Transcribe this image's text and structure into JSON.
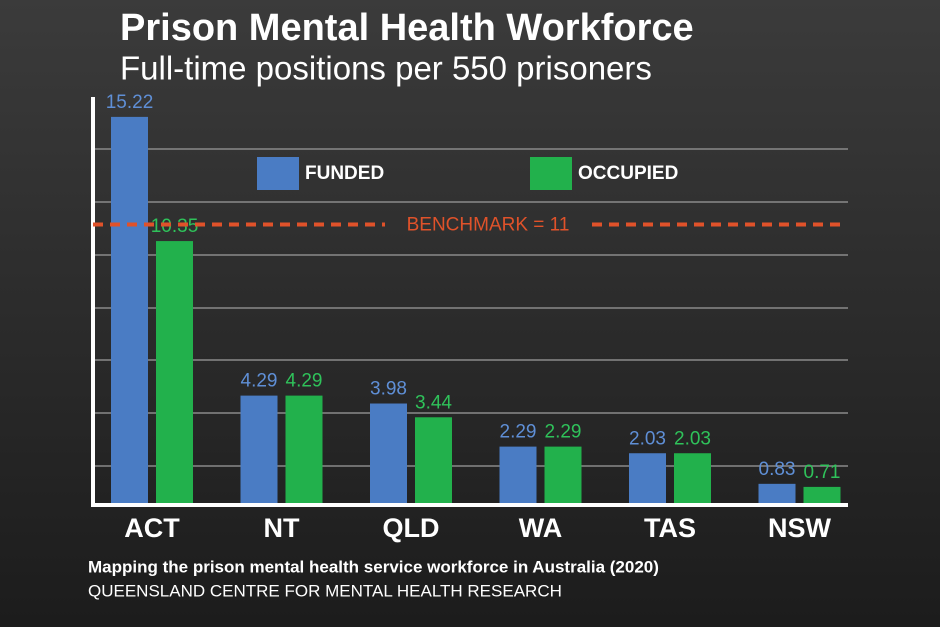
{
  "chart_data": {
    "type": "bar",
    "title": "Prison Mental Health Workforce",
    "subtitle": "Full-time positions per 550 prisoners",
    "categories": [
      "ACT",
      "NT",
      "QLD",
      "WA",
      "TAS",
      "NSW"
    ],
    "series": [
      {
        "name": "FUNDED",
        "color": "#4a7cc4",
        "values": [
          15.22,
          4.29,
          3.98,
          2.29,
          2.03,
          0.83
        ]
      },
      {
        "name": "OCCUPIED",
        "color": "#22b14c",
        "values": [
          10.35,
          4.29,
          3.44,
          2.29,
          2.03,
          0.71
        ]
      }
    ],
    "benchmark": {
      "value": 11,
      "label": "BENCHMARK = 11",
      "color": "#e0522a"
    },
    "ylim": [
      0,
      16
    ],
    "source_title": "Mapping the prison mental health service workforce in Australia (2020)",
    "source_org": "QUEENSLAND CENTRE FOR MENTAL HEALTH RESEARCH"
  }
}
